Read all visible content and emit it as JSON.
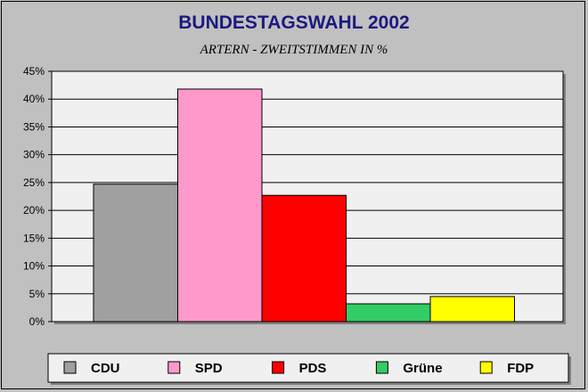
{
  "chart_data": {
    "type": "bar",
    "title": "BUNDESTAGSWAHL 2002",
    "subtitle": "ARTERN - ZWEITSTIMMEN IN %",
    "categories": [
      "CDU",
      "SPD",
      "PDS",
      "Grüne",
      "FDP"
    ],
    "values": [
      24.7,
      41.8,
      22.7,
      3.2,
      4.5
    ],
    "colors": [
      "#a0a0a0",
      "#ff99cc",
      "#ff0000",
      "#33cc66",
      "#ffff00"
    ],
    "ylim": [
      0,
      45
    ],
    "yticks": [
      0,
      5,
      10,
      15,
      20,
      25,
      30,
      35,
      40,
      45
    ],
    "ytick_labels": [
      "0%",
      "5%",
      "10%",
      "15%",
      "20%",
      "25%",
      "30%",
      "35%",
      "40%",
      "45%"
    ],
    "grid": true,
    "legend": "bottom"
  }
}
